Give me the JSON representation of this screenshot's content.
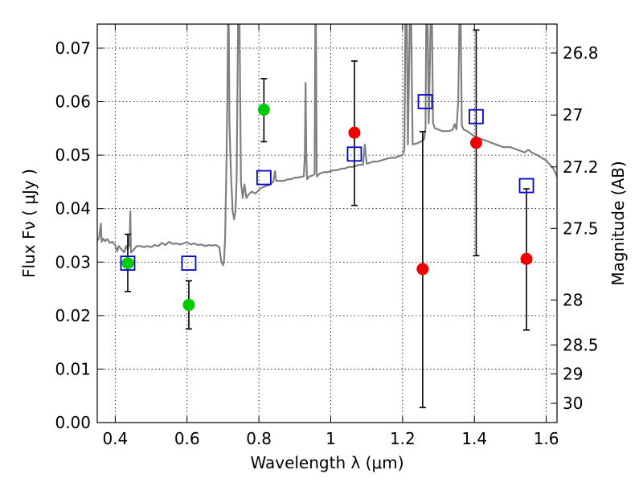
{
  "chart_data": {
    "type": "scatter",
    "xlabel": "Wavelength  λ (μm)",
    "ylabel": "Flux  Fν  ( μJy )",
    "ylabel_right": "Magnitude (AB)",
    "xlim": [
      0.35,
      1.63
    ],
    "ylim": [
      0.0,
      0.0745
    ],
    "grid": true,
    "x_ticks": [
      0.4,
      0.6,
      0.8,
      1.0,
      1.2,
      1.4,
      1.6
    ],
    "x_tick_labels": [
      "0.4",
      "0.6",
      "0.8",
      "1",
      "1.2",
      "1.4",
      "1.6"
    ],
    "y_ticks": [
      0.0,
      0.01,
      0.02,
      0.03,
      0.04,
      0.05,
      0.06,
      0.07
    ],
    "y_tick_labels": [
      "0.00",
      "0.01",
      "0.02",
      "0.03",
      "0.04",
      "0.05",
      "0.06",
      "0.07"
    ],
    "right_ticks": [
      {
        "label": "26.8",
        "flux": 0.0691
      },
      {
        "label": "27",
        "flux": 0.0575
      },
      {
        "label": "27.2",
        "flux": 0.0478
      },
      {
        "label": "27.5",
        "flux": 0.0363
      },
      {
        "label": "28",
        "flux": 0.0229
      },
      {
        "label": "28.5",
        "flux": 0.0145
      },
      {
        "label": "29",
        "flux": 0.0091
      },
      {
        "label": "30",
        "flux": 0.0036
      }
    ],
    "series": [
      {
        "name": "Model spectrum",
        "kind": "line",
        "color": "#808080",
        "points": [
          [
            0.35,
            0.034
          ],
          [
            0.355,
            0.0345
          ],
          [
            0.36,
            0.0372
          ],
          [
            0.362,
            0.0338
          ],
          [
            0.367,
            0.0344
          ],
          [
            0.372,
            0.0339
          ],
          [
            0.378,
            0.0343
          ],
          [
            0.385,
            0.0336
          ],
          [
            0.392,
            0.0338
          ],
          [
            0.4,
            0.0332
          ],
          [
            0.405,
            0.032
          ],
          [
            0.41,
            0.033
          ],
          [
            0.415,
            0.0326
          ],
          [
            0.42,
            0.0322
          ],
          [
            0.425,
            0.0318
          ],
          [
            0.43,
            0.033
          ],
          [
            0.435,
            0.0324
          ],
          [
            0.438,
            0.0348
          ],
          [
            0.44,
            0.033
          ],
          [
            0.442,
            0.0395
          ],
          [
            0.444,
            0.0318
          ],
          [
            0.45,
            0.0322
          ],
          [
            0.46,
            0.033
          ],
          [
            0.47,
            0.033
          ],
          [
            0.48,
            0.0328
          ],
          [
            0.49,
            0.033
          ],
          [
            0.5,
            0.0328
          ],
          [
            0.51,
            0.0332
          ],
          [
            0.52,
            0.033
          ],
          [
            0.53,
            0.0336
          ],
          [
            0.54,
            0.0332
          ],
          [
            0.55,
            0.0338
          ],
          [
            0.56,
            0.0334
          ],
          [
            0.57,
            0.0335
          ],
          [
            0.58,
            0.0333
          ],
          [
            0.59,
            0.0335
          ],
          [
            0.6,
            0.0337
          ],
          [
            0.61,
            0.0333
          ],
          [
            0.62,
            0.0335
          ],
          [
            0.63,
            0.0332
          ],
          [
            0.64,
            0.0333
          ],
          [
            0.65,
            0.033
          ],
          [
            0.66,
            0.0332
          ],
          [
            0.67,
            0.0331
          ],
          [
            0.68,
            0.0332
          ],
          [
            0.69,
            0.0328
          ],
          [
            0.695,
            0.0302
          ],
          [
            0.7,
            0.0294
          ],
          [
            0.703,
            0.0302
          ],
          [
            0.706,
            0.0345
          ],
          [
            0.71,
            0.05
          ],
          [
            0.712,
            0.06
          ],
          [
            0.714,
            0.0745
          ],
          [
            0.716,
            0.0745
          ],
          [
            0.718,
            0.056
          ],
          [
            0.722,
            0.047
          ],
          [
            0.727,
            0.0395
          ],
          [
            0.731,
            0.038
          ],
          [
            0.735,
            0.0395
          ],
          [
            0.738,
            0.0455
          ],
          [
            0.742,
            0.0745
          ],
          [
            0.746,
            0.0745
          ],
          [
            0.75,
            0.045
          ],
          [
            0.755,
            0.042
          ],
          [
            0.76,
            0.0445
          ],
          [
            0.765,
            0.042
          ],
          [
            0.77,
            0.0425
          ],
          [
            0.78,
            0.0432
          ],
          [
            0.79,
            0.0428
          ],
          [
            0.8,
            0.0435
          ],
          [
            0.81,
            0.044
          ],
          [
            0.82,
            0.0442
          ],
          [
            0.83,
            0.0445
          ],
          [
            0.84,
            0.045
          ],
          [
            0.845,
            0.047
          ],
          [
            0.848,
            0.0452
          ],
          [
            0.86,
            0.0452
          ],
          [
            0.87,
            0.0452
          ],
          [
            0.88,
            0.0455
          ],
          [
            0.89,
            0.0455
          ],
          [
            0.9,
            0.0458
          ],
          [
            0.91,
            0.0458
          ],
          [
            0.92,
            0.046
          ],
          [
            0.925,
            0.046
          ],
          [
            0.928,
            0.05
          ],
          [
            0.93,
            0.0635
          ],
          [
            0.932,
            0.05
          ],
          [
            0.934,
            0.0455
          ],
          [
            0.94,
            0.046
          ],
          [
            0.95,
            0.0462
          ],
          [
            0.955,
            0.0465
          ],
          [
            0.957,
            0.0745
          ],
          [
            0.959,
            0.0745
          ],
          [
            0.961,
            0.046
          ],
          [
            0.97,
            0.0466
          ],
          [
            0.98,
            0.0468
          ],
          [
            0.99,
            0.0468
          ],
          [
            1.0,
            0.047
          ],
          [
            1.01,
            0.0472
          ],
          [
            1.02,
            0.0472
          ],
          [
            1.03,
            0.0475
          ],
          [
            1.04,
            0.0475
          ],
          [
            1.05,
            0.0478
          ],
          [
            1.06,
            0.0478
          ],
          [
            1.07,
            0.048
          ],
          [
            1.08,
            0.0482
          ],
          [
            1.09,
            0.0482
          ],
          [
            1.095,
            0.052
          ],
          [
            1.1,
            0.0484
          ],
          [
            1.11,
            0.0486
          ],
          [
            1.12,
            0.0488
          ],
          [
            1.13,
            0.0488
          ],
          [
            1.14,
            0.049
          ],
          [
            1.15,
            0.0492
          ],
          [
            1.16,
            0.0494
          ],
          [
            1.17,
            0.0495
          ],
          [
            1.18,
            0.0495
          ],
          [
            1.19,
            0.0498
          ],
          [
            1.2,
            0.05
          ],
          [
            1.205,
            0.051
          ],
          [
            1.208,
            0.0745
          ],
          [
            1.212,
            0.0745
          ],
          [
            1.215,
            0.052
          ],
          [
            1.22,
            0.0745
          ],
          [
            1.224,
            0.0745
          ],
          [
            1.228,
            0.052
          ],
          [
            1.24,
            0.0522
          ],
          [
            1.25,
            0.0525
          ],
          [
            1.26,
            0.053
          ],
          [
            1.264,
            0.055
          ],
          [
            1.266,
            0.0745
          ],
          [
            1.27,
            0.0745
          ],
          [
            1.273,
            0.056
          ],
          [
            1.278,
            0.0745
          ],
          [
            1.282,
            0.0745
          ],
          [
            1.285,
            0.056
          ],
          [
            1.29,
            0.055
          ],
          [
            1.3,
            0.0548
          ],
          [
            1.31,
            0.0545
          ],
          [
            1.32,
            0.0545
          ],
          [
            1.33,
            0.0545
          ],
          [
            1.34,
            0.0548
          ],
          [
            1.345,
            0.0558
          ],
          [
            1.35,
            0.0548
          ],
          [
            1.355,
            0.06
          ],
          [
            1.358,
            0.0745
          ],
          [
            1.362,
            0.0745
          ],
          [
            1.365,
            0.0555
          ],
          [
            1.37,
            0.0548
          ],
          [
            1.38,
            0.0545
          ],
          [
            1.39,
            0.054
          ],
          [
            1.4,
            0.0535
          ],
          [
            1.42,
            0.053
          ],
          [
            1.44,
            0.0525
          ],
          [
            1.46,
            0.052
          ],
          [
            1.48,
            0.0515
          ],
          [
            1.5,
            0.0515
          ],
          [
            1.52,
            0.051
          ],
          [
            1.54,
            0.0505
          ],
          [
            1.55,
            0.051
          ],
          [
            1.56,
            0.0505
          ],
          [
            1.58,
            0.0498
          ],
          [
            1.6,
            0.049
          ],
          [
            1.62,
            0.0475
          ],
          [
            1.63,
            0.046
          ]
        ]
      },
      {
        "name": "Photometry (green)",
        "kind": "points",
        "color": "#00cc00",
        "points": [
          {
            "x": 0.435,
            "y": 0.0298,
            "yerr_lo": 0.0245,
            "yerr_hi": 0.0352
          },
          {
            "x": 0.605,
            "y": 0.022,
            "yerr_lo": 0.0175,
            "yerr_hi": 0.0265
          },
          {
            "x": 0.814,
            "y": 0.0585,
            "yerr_lo": 0.0525,
            "yerr_hi": 0.0643
          }
        ]
      },
      {
        "name": "Photometry (red)",
        "kind": "points",
        "color": "#ee0000",
        "points": [
          {
            "x": 1.066,
            "y": 0.0542,
            "yerr_lo": 0.0406,
            "yerr_hi": 0.0676
          },
          {
            "x": 1.256,
            "y": 0.0287,
            "yerr_lo": 0.0028,
            "yerr_hi": 0.0544
          },
          {
            "x": 1.405,
            "y": 0.0523,
            "yerr_lo": 0.0312,
            "yerr_hi": 0.0734
          },
          {
            "x": 1.545,
            "y": 0.0306,
            "yerr_lo": 0.0173,
            "yerr_hi": 0.0437
          }
        ]
      },
      {
        "name": "Model photometry (blue squares)",
        "kind": "points",
        "color": "#0000cc",
        "points": [
          {
            "x": 0.435,
            "y": 0.0298
          },
          {
            "x": 0.605,
            "y": 0.0298
          },
          {
            "x": 0.814,
            "y": 0.0458
          },
          {
            "x": 1.066,
            "y": 0.0502
          },
          {
            "x": 1.263,
            "y": 0.06
          },
          {
            "x": 1.405,
            "y": 0.0572
          },
          {
            "x": 1.545,
            "y": 0.0443
          }
        ]
      }
    ]
  }
}
